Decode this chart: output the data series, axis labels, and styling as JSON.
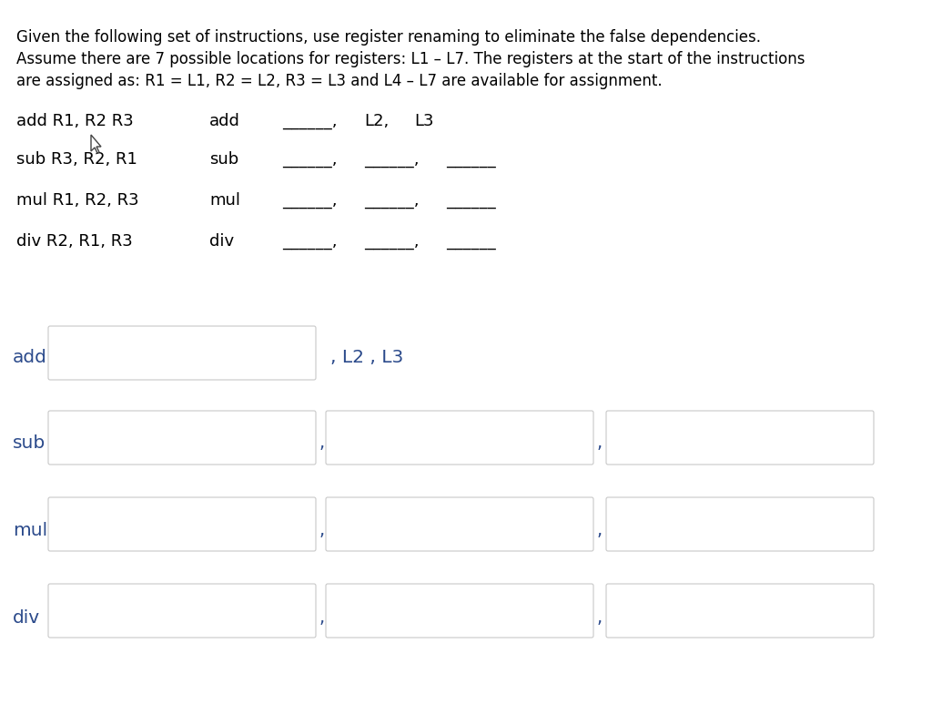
{
  "bg_color": "#ffffff",
  "text_color": "#000000",
  "label_color": "#2b4a8b",
  "header_text": [
    "Given the following set of instructions, use register renaming to eliminate the false dependencies.",
    "Assume there are 7 possible locations for registers: L1 – L7. The registers at the start of the instructions",
    "are assigned as: R1 = L1, R2 = L2, R3 = L3 and L4 – L7 are available for assignment."
  ],
  "instructions_left": [
    "add R1, R2 R3",
    "sub R3, R2, R1",
    "mul R1, R2, R3",
    "div R2, R1, R3"
  ],
  "right_labels": [
    "add",
    "sub",
    "mul",
    "div"
  ],
  "bottom_labels": [
    "add",
    "sub",
    "mul",
    "div"
  ],
  "font_size_header": 12,
  "font_size_instr": 13,
  "font_size_label": 14.5,
  "font_size_comma": 14,
  "box_facecolor": "#ffffff",
  "box_edgecolor": "#c8c8c8",
  "underline_color": "#555555"
}
